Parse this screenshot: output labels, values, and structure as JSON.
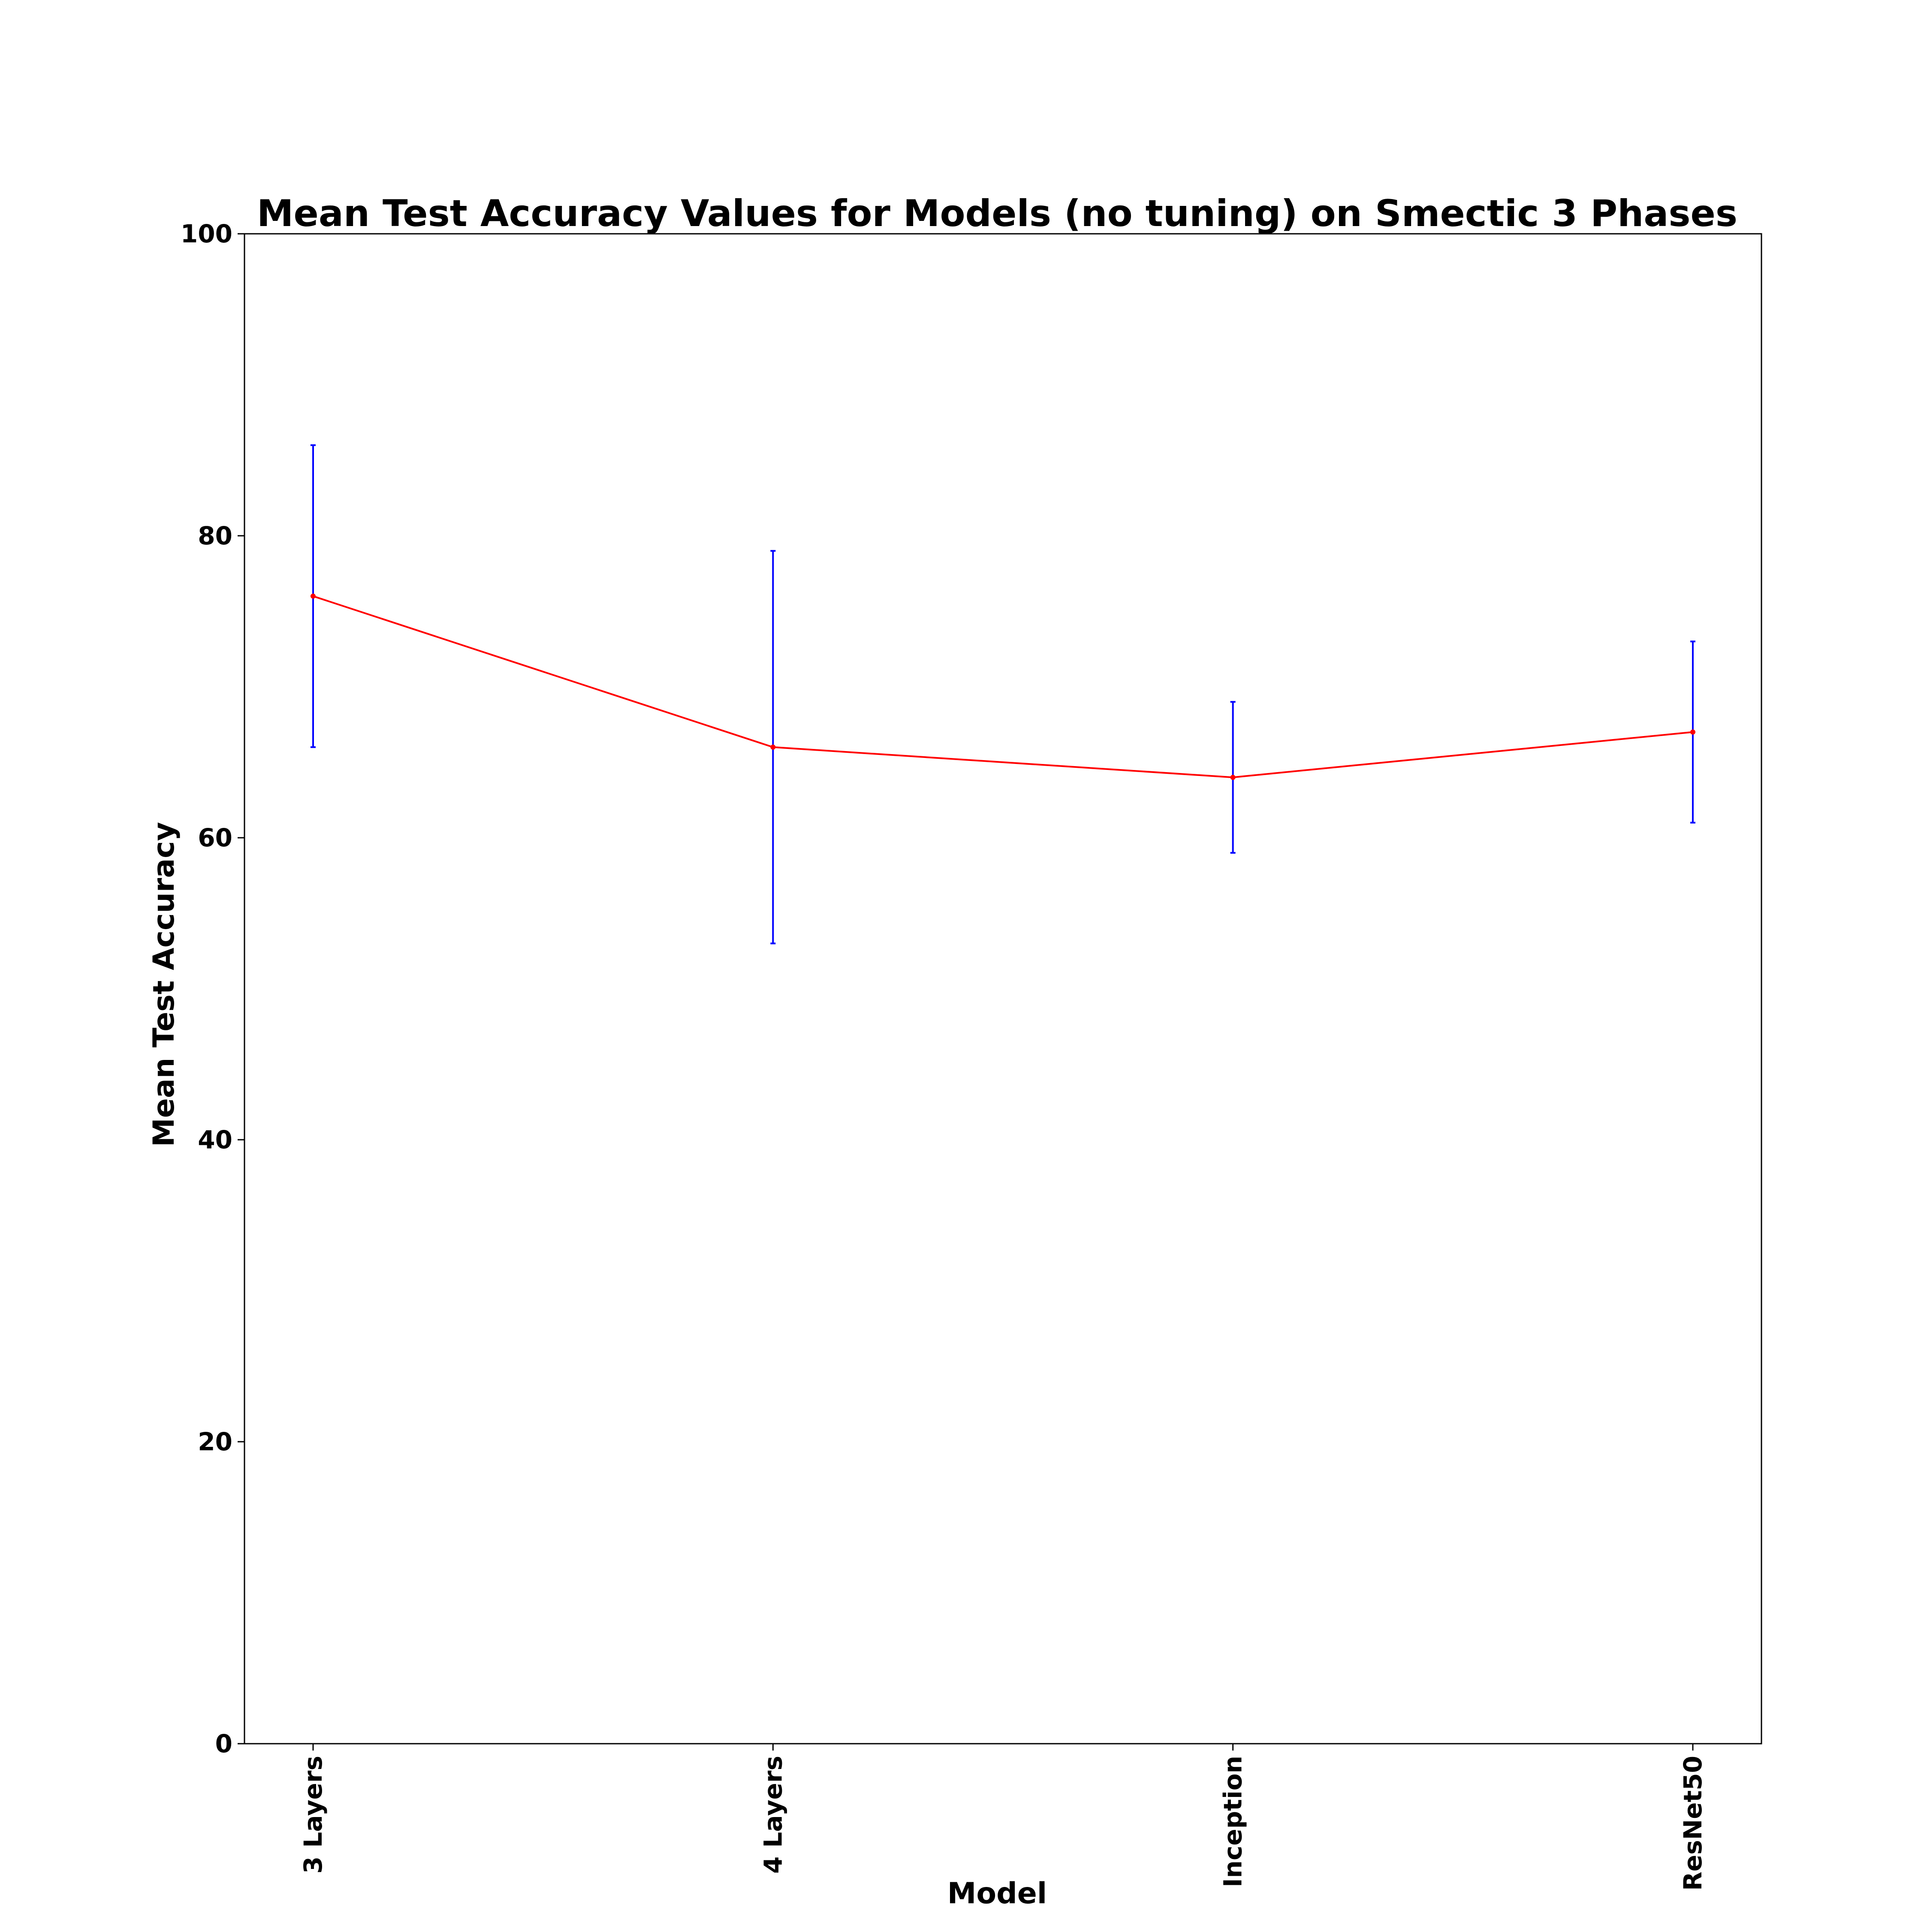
{
  "chart_data": {
    "type": "line",
    "title": "Mean Test Accuracy Values for Models (no tuning) on Smectic 3 Phases",
    "xlabel": "Model",
    "ylabel": "Mean Test Accuracy",
    "categories": [
      "3 Layers",
      "4 Layers",
      "Inception",
      "ResNet50"
    ],
    "values": [
      76,
      66,
      64,
      67
    ],
    "error_bars": {
      "lower": [
        66,
        53,
        59,
        61
      ],
      "upper": [
        86,
        79,
        69,
        73
      ]
    },
    "ylim": [
      0,
      100
    ],
    "yticks": [
      0,
      20,
      40,
      60,
      80,
      100
    ],
    "grid": false,
    "legend": "none",
    "colors": {
      "line": "#ff0000",
      "error_bar": "#0000ff",
      "axis": "#000000"
    }
  }
}
